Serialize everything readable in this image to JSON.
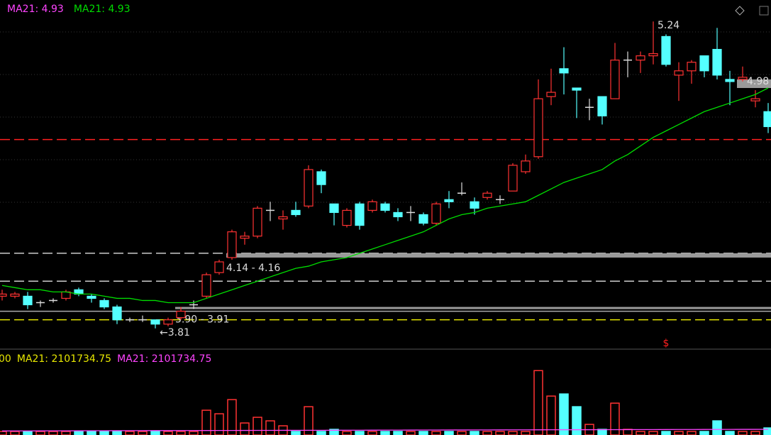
{
  "chart_data": {
    "type": "candlestick",
    "ylim": [
      3.72,
      5.34
    ],
    "up_color": "#ff3232",
    "down_color": "#54ffff",
    "flat_color": "#dddddd",
    "open": [
      3.96,
      3.96,
      3.96,
      3.93,
      3.94,
      3.95,
      3.99,
      3.96,
      3.94,
      3.91,
      3.85,
      3.85,
      3.85,
      3.83,
      3.86,
      3.92,
      3.96,
      4.07,
      4.14,
      4.23,
      4.24,
      4.36,
      4.32,
      4.36,
      4.38,
      4.54,
      4.39,
      4.29,
      4.39,
      4.36,
      4.39,
      4.35,
      4.35,
      4.34,
      4.3,
      4.41,
      4.44,
      4.4,
      4.42,
      4.41,
      4.45,
      4.54,
      4.61,
      4.89,
      5.02,
      4.93,
      4.84,
      4.89,
      4.88,
      5.06,
      5.06,
      5.08,
      5.17,
      4.99,
      5.01,
      5.08,
      5.11,
      4.97,
      4.97,
      4.87,
      4.82
    ],
    "high": [
      3.99,
      3.98,
      3.98,
      3.94,
      3.95,
      3.99,
      4.0,
      3.97,
      3.95,
      3.92,
      3.86,
      3.87,
      3.85,
      3.86,
      3.91,
      3.94,
      4.07,
      4.13,
      4.27,
      4.26,
      4.38,
      4.4,
      4.36,
      4.4,
      4.57,
      4.55,
      4.39,
      4.37,
      4.4,
      4.41,
      4.4,
      4.37,
      4.38,
      4.35,
      4.4,
      4.45,
      4.49,
      4.42,
      4.45,
      4.43,
      4.58,
      4.62,
      4.97,
      5.02,
      5.12,
      4.93,
      4.88,
      4.89,
      5.14,
      5.1,
      5.1,
      5.24,
      5.18,
      5.05,
      5.06,
      5.08,
      5.21,
      5.01,
      5.03,
      4.92,
      4.86
    ],
    "low": [
      3.94,
      3.95,
      3.9,
      3.91,
      3.93,
      3.94,
      3.96,
      3.93,
      3.9,
      3.83,
      3.84,
      3.84,
      3.81,
      3.82,
      3.85,
      3.9,
      3.95,
      4.06,
      4.13,
      4.2,
      4.23,
      4.31,
      4.27,
      4.33,
      4.37,
      4.44,
      4.29,
      4.28,
      4.27,
      4.35,
      4.35,
      4.31,
      4.31,
      4.29,
      4.29,
      4.37,
      4.43,
      4.34,
      4.41,
      4.39,
      4.45,
      4.53,
      4.6,
      4.85,
      4.9,
      4.79,
      4.78,
      4.76,
      4.88,
      4.98,
      5.0,
      5.04,
      5.03,
      4.87,
      4.95,
      4.98,
      4.97,
      4.85,
      4.96,
      4.84,
      4.72
    ],
    "close": [
      3.97,
      3.97,
      3.92,
      3.93,
      3.94,
      3.98,
      3.97,
      3.95,
      3.91,
      3.85,
      3.85,
      3.85,
      3.83,
      3.85,
      3.89,
      3.92,
      4.06,
      4.12,
      4.26,
      4.24,
      4.37,
      4.36,
      4.33,
      4.34,
      4.55,
      4.48,
      4.35,
      4.36,
      4.29,
      4.4,
      4.36,
      4.33,
      4.35,
      4.3,
      4.39,
      4.4,
      4.44,
      4.37,
      4.44,
      4.41,
      4.57,
      4.59,
      4.88,
      4.91,
      5.0,
      4.92,
      4.84,
      4.8,
      5.06,
      5.06,
      5.08,
      5.09,
      5.04,
      5.01,
      5.05,
      5.01,
      4.99,
      4.96,
      4.98,
      4.88,
      4.75
    ],
    "ma": {
      "name": "MA21",
      "color": "#00dd00",
      "values": [
        4.01,
        4.0,
        3.99,
        3.99,
        3.98,
        3.98,
        3.97,
        3.97,
        3.96,
        3.95,
        3.95,
        3.94,
        3.94,
        3.93,
        3.93,
        3.93,
        3.95,
        3.97,
        3.99,
        4.01,
        4.03,
        4.05,
        4.07,
        4.09,
        4.1,
        4.12,
        4.13,
        4.14,
        4.16,
        4.18,
        4.2,
        4.22,
        4.24,
        4.26,
        4.29,
        4.32,
        4.34,
        4.35,
        4.37,
        4.38,
        4.39,
        4.4,
        4.43,
        4.46,
        4.49,
        4.51,
        4.53,
        4.55,
        4.59,
        4.62,
        4.66,
        4.7,
        4.73,
        4.76,
        4.79,
        4.82,
        4.84,
        4.86,
        4.88,
        4.9,
        4.93
      ]
    },
    "legend": [
      {
        "label": "MA21: 4.93",
        "color": "#ff44ff"
      },
      {
        "label": "MA21: 4.93",
        "color": "#00dd00"
      }
    ],
    "levels": [
      {
        "value": 4.69,
        "color": "#ff2020",
        "dash": true
      },
      {
        "value": 4.16,
        "color": "#cccccc",
        "dash": true
      },
      {
        "value": 4.03,
        "color": "#cccccc",
        "dash": true
      },
      {
        "value": 3.89,
        "color": "#aaaaaa",
        "dash": false
      },
      {
        "value": 3.85,
        "color": "#e6e600",
        "dash": true
      }
    ],
    "zones": [
      {
        "range": [
          4.14,
          4.16
        ],
        "from": 18,
        "label": "4.14 - 4.16"
      },
      {
        "range": [
          3.9,
          3.91
        ],
        "from": 14,
        "label": "3.90 - 3.91"
      },
      {
        "range": [
          4.93,
          4.97
        ],
        "from": 58
      }
    ],
    "annotations": [
      {
        "index": 51,
        "value": 5.24,
        "label": "5.24"
      },
      {
        "index": 12,
        "value": 3.81,
        "label": "←3.81"
      },
      {
        "index": 58,
        "value": 4.98,
        "label": "4.98"
      },
      {
        "index": 52,
        "label": "$",
        "color": "#ff2020"
      }
    ],
    "volume": {
      "ylim": [
        0,
        31000000
      ],
      "values": [
        1310000,
        1310000,
        1310000,
        1310000,
        1310000,
        1310000,
        1310000,
        1310000,
        1310000,
        1310000,
        1310000,
        1310000,
        1310000,
        1310000,
        1310000,
        1310000,
        9170000,
        7860000,
        13100000,
        4454000,
        6550000,
        5240000,
        3406000,
        1310000,
        10480000,
        1310000,
        2096000,
        1310000,
        1310000,
        1310000,
        1310000,
        1310000,
        1310000,
        1310000,
        1310000,
        1310000,
        1310000,
        1310000,
        1310000,
        1310000,
        1310000,
        1310000,
        23842000,
        14410000,
        15196000,
        10480000,
        3930000,
        2096000,
        11790000,
        2096000,
        1310000,
        1310000,
        1310000,
        1310000,
        1310000,
        1310000,
        5240000,
        1310000,
        1310000,
        1310000,
        2620000
      ],
      "ma": {
        "name": "MA21",
        "color": "#ff44ff",
        "values": [
          1500000,
          1510000,
          1520000,
          1530000,
          1540000,
          1550000,
          1560000,
          1570000,
          1580000,
          1590000,
          1600000,
          1610000,
          1620000,
          1630000,
          1640000,
          1650000,
          1660000,
          1670000,
          1680000,
          1690000,
          1700000,
          1710000,
          1720000,
          1730000,
          1740000,
          1750000,
          1760000,
          1770000,
          1780000,
          1790000,
          1800000,
          1810000,
          1820000,
          1830000,
          1840000,
          1850000,
          1860000,
          1870000,
          1880000,
          1890000,
          1900000,
          1910000,
          1920000,
          1930000,
          1940000,
          1950000,
          1960000,
          1970000,
          1980000,
          1990000,
          2000000,
          2010000,
          2020000,
          2030000,
          2040000,
          2050000,
          2060000,
          2070000,
          2080000,
          2090000,
          2101734.75
        ]
      },
      "legend": [
        {
          "label": "00",
          "color": "#e6e600"
        },
        {
          "label": "MA21: 2101734.75",
          "color": "#e6e600"
        },
        {
          "label": "MA21: 2101734.75",
          "color": "#ff44ff"
        }
      ]
    }
  }
}
